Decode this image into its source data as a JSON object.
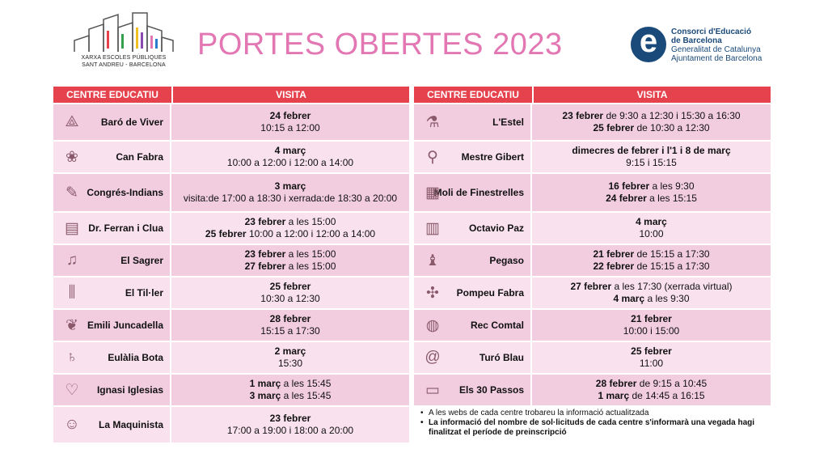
{
  "header": {
    "title": "PORTES OBERTES 2023",
    "left_logo": {
      "line1": "XARXA ESCOLES PÚBLIQUES",
      "line2": "SANT ANDREU - BARCELONA"
    },
    "right_logo": {
      "letter": "e",
      "line1": "Consorci d'Educació",
      "line2": "de Barcelona",
      "line3": "Generalitat de Catalunya",
      "line4": "Ajuntament de Barcelona"
    }
  },
  "columns": {
    "centre": "CENTRE EDUCATIU",
    "visit": "VISITA"
  },
  "left_rows": [
    {
      "name": "Baró de Viver",
      "icon": "pyramid-icon",
      "glyph": "⟁",
      "lines": [
        [
          {
            "b": "24 febrer"
          }
        ],
        [
          {
            "t": "10:15 a 12:00"
          }
        ]
      ]
    },
    {
      "name": "Can Fabra",
      "icon": "flower-icon",
      "glyph": "❀",
      "lines": [
        [
          {
            "b": "4 març"
          }
        ],
        [
          {
            "t": "10:00 a 12:00 i 12:00 a 14:00"
          }
        ]
      ]
    },
    {
      "name": "Congrés-Indians",
      "icon": "brush-icon",
      "glyph": "✎",
      "lines": [
        [
          {
            "b": "3 març"
          }
        ],
        [
          {
            "t": "visita:de 17:00 a 18:30 i xerrada:de 18:30 a 20:00"
          }
        ]
      ]
    },
    {
      "name": "Dr. Ferran i Clua",
      "icon": "clipboard-icon",
      "glyph": "▤",
      "lines": [
        [
          {
            "b": "23 febrer"
          },
          {
            "t": " a les 15:00"
          }
        ],
        [
          {
            "b": "25 febrer"
          },
          {
            "t": " 10:00 a 12:00 i 12:00 a 14:00"
          }
        ]
      ]
    },
    {
      "name": "El Sagrer",
      "icon": "music-notes-icon",
      "glyph": "♫",
      "lines": [
        [
          {
            "b": "23 febrer"
          },
          {
            "t": " a les 15:00"
          }
        ],
        [
          {
            "b": "27 febrer"
          },
          {
            "t": " a les 15:00"
          }
        ]
      ]
    },
    {
      "name": "El Til·ler",
      "icon": "test-tubes-icon",
      "glyph": "⫼",
      "lines": [
        [
          {
            "b": "25 febrer"
          }
        ],
        [
          {
            "t": "10:30 a 12:30"
          }
        ]
      ]
    },
    {
      "name": "Emili Juncadella",
      "icon": "leaf-icon",
      "glyph": "❦",
      "lines": [
        [
          {
            "b": "28 febrer"
          }
        ],
        [
          {
            "t": "15:15 a 17:30"
          }
        ]
      ]
    },
    {
      "name": "Eulàlia Bota",
      "icon": "planet-icon",
      "glyph": "♄",
      "lines": [
        [
          {
            "b": "2 març"
          }
        ],
        [
          {
            "t": "15:30"
          }
        ]
      ]
    },
    {
      "name": "Ignasi Iglesias",
      "icon": "heart-organ-icon",
      "glyph": "♡",
      "lines": [
        [
          {
            "b": "1 març"
          },
          {
            "t": " a les 15:45"
          }
        ],
        [
          {
            "b": "3 març"
          },
          {
            "t": " a les 15:45"
          }
        ]
      ]
    },
    {
      "name": "La Maquinista",
      "icon": "theatre-masks-icon",
      "glyph": "☺",
      "lines": [
        [
          {
            "b": "23 febrer"
          }
        ],
        [
          {
            "t": "17:00 a 19:00 i 18:00 a 20:00"
          }
        ]
      ]
    }
  ],
  "right_rows": [
    {
      "name": "L'Estel",
      "icon": "plant-flask-icon",
      "glyph": "⚗",
      "lines": [
        [
          {
            "b": "23 febrer"
          },
          {
            "t": " de 9:30 a 12:30 i 15:30 a 16:30"
          }
        ],
        [
          {
            "b": "25 febrer"
          },
          {
            "t": " de 10:30 a 12:30"
          }
        ]
      ]
    },
    {
      "name": "Mestre Gibert",
      "icon": "microscope-icon",
      "glyph": "⚲",
      "lines": [
        [
          {
            "b": "dimecres de febrer i l'1 i 8 de març"
          }
        ],
        [
          {
            "t": "9:15 i 15:15"
          }
        ]
      ]
    },
    {
      "name": "Moli de Finestrelles",
      "icon": "books-icon",
      "glyph": "▦",
      "lines": [
        [
          {
            "b": "16 febrer"
          },
          {
            "t": " a les 9:30"
          }
        ],
        [
          {
            "b": "24 febrer"
          },
          {
            "t": " a les 15:15"
          }
        ]
      ]
    },
    {
      "name": "Octavio Paz",
      "icon": "abacus-icon",
      "glyph": "▥",
      "lines": [
        [
          {
            "b": "4 març"
          }
        ],
        [
          {
            "t": "10:00"
          }
        ]
      ]
    },
    {
      "name": "Pegaso",
      "icon": "chess-piece-icon",
      "glyph": "♝",
      "lines": [
        [
          {
            "b": "21 febrer"
          },
          {
            "t": " de 15:15 a 17:30"
          }
        ],
        [
          {
            "b": "22 febrer"
          },
          {
            "t": " de 15:15 a 17:30"
          }
        ]
      ]
    },
    {
      "name": "Pompeu Fabra",
      "icon": "puzzle-icon",
      "glyph": "✣",
      "lines": [
        [
          {
            "b": "27 febrer"
          },
          {
            "t": " a les 17:30 (xerrada virtual)"
          }
        ],
        [
          {
            "b": "4 març"
          },
          {
            "t": " a les 9:30"
          }
        ]
      ]
    },
    {
      "name": "Rec Comtal",
      "icon": "world-map-icon",
      "glyph": "◍",
      "lines": [
        [
          {
            "b": "21 febrer"
          }
        ],
        [
          {
            "t": "10:00 i 15:00"
          }
        ]
      ]
    },
    {
      "name": "Turó Blau",
      "icon": "at-sign-icon",
      "glyph": "@",
      "lines": [
        [
          {
            "b": "25 febrer"
          }
        ],
        [
          {
            "t": "11:00"
          }
        ]
      ]
    },
    {
      "name": "Els 30 Passos",
      "icon": "computer-icon",
      "glyph": "▭",
      "lines": [
        [
          {
            "b": "28 febrer"
          },
          {
            "t": " de 9:15 a 10:45"
          }
        ],
        [
          {
            "b": "1 març"
          },
          {
            "t": " de 14:45 a 16:15"
          }
        ]
      ]
    }
  ],
  "notes": [
    {
      "text": "A les webs de cada centre trobareu la informació actualitzada",
      "bold": false
    },
    {
      "text": "La informació del nombre de sol·licituds de cada centre s'informarà una vegada hagi finalitzat el període de preinscripció",
      "bold": true
    }
  ]
}
